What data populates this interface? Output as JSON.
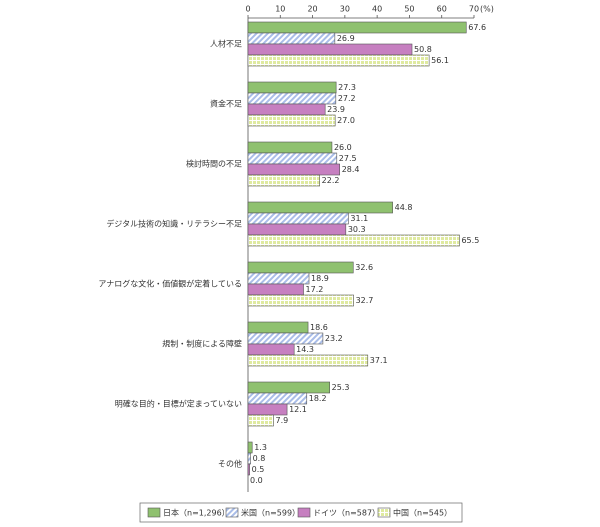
{
  "chart_data": {
    "type": "bar",
    "orientation": "horizontal",
    "categories": [
      "人材不足",
      "資金不足",
      "検討時間の不足",
      "デジタル技術の知識・リテラシー不足",
      "アナログな文化・価値観が定着している",
      "規制・制度による障壁",
      "明確な目的・目標が定まっていない",
      "その他"
    ],
    "series": [
      {
        "name": "日本（n=1,296）",
        "color": "#8fc16f",
        "pattern": "solid",
        "values": [
          67.6,
          27.3,
          26.0,
          44.8,
          32.6,
          18.6,
          25.3,
          1.3
        ],
        "value_labels": [
          "67.6",
          "27.3",
          "26.0",
          "44.8",
          "32.6",
          "18.6",
          "25.3",
          "1.3"
        ]
      },
      {
        "name": "米国（n=599）",
        "color": "#a9bde8",
        "pattern": "hatch",
        "values": [
          26.9,
          27.2,
          27.5,
          31.1,
          18.9,
          23.2,
          18.2,
          0.8
        ],
        "value_labels": [
          "26.9",
          "27.2",
          "27.5",
          "31.1",
          "18.9",
          "23.2",
          "18.2",
          "0.8"
        ]
      },
      {
        "name": "ドイツ（n=587）",
        "color": "#c67fc0",
        "pattern": "solid",
        "values": [
          50.8,
          23.9,
          28.4,
          30.3,
          17.2,
          14.3,
          12.1,
          0.5
        ],
        "value_labels": [
          "50.8",
          "23.9",
          "28.4",
          "30.3",
          "17.2",
          "14.3",
          "12.1",
          "0.5"
        ]
      },
      {
        "name": "中国（n=545）",
        "color": "#dfeaa0",
        "pattern": "grid",
        "values": [
          56.1,
          27.0,
          22.2,
          65.5,
          32.7,
          37.1,
          7.9,
          0.0
        ],
        "value_labels": [
          "56.1",
          "27.0",
          "22.2",
          "65.5",
          "32.7",
          "37.1",
          "7.9",
          "0.0"
        ]
      }
    ],
    "xlim": [
      0,
      70
    ],
    "xticks": [
      0,
      10,
      20,
      30,
      40,
      50,
      60,
      70
    ],
    "x_unit": "(%)",
    "legend": "bottom"
  }
}
